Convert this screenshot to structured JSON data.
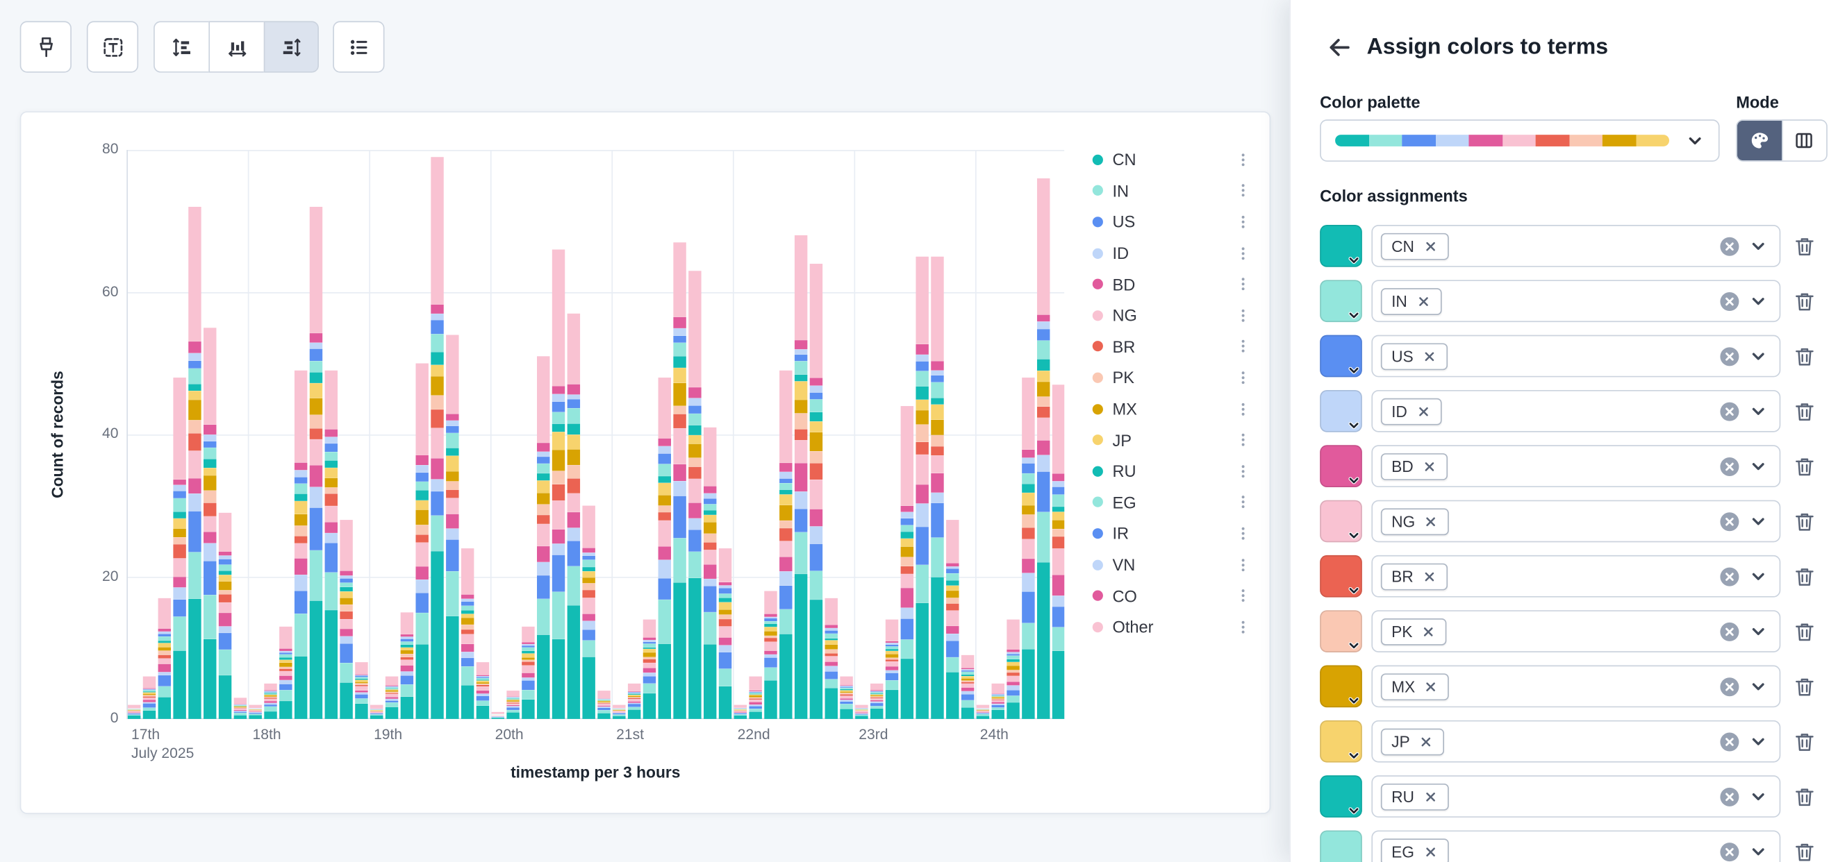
{
  "toolbar": {
    "buttons": [
      {
        "name": "brush",
        "pressed": false
      },
      {
        "name": "text-annotation",
        "pressed": false
      },
      {
        "name": "left-axis",
        "pressed": false
      },
      {
        "name": "bottom-axis",
        "pressed": false
      },
      {
        "name": "right-axis",
        "pressed": true
      },
      {
        "name": "legend-values",
        "pressed": false
      }
    ]
  },
  "icons": {
    "toolbar": [
      "brush-icon",
      "text-annotation-icon",
      "left-axis-icon",
      "bottom-axis-icon",
      "right-axis-icon",
      "legend-values-icon"
    ],
    "flyout": [
      "arrow-left-icon",
      "chevron-down-icon",
      "palette-icon",
      "columns-icon",
      "clear-circle-icon",
      "trash-icon",
      "cross-icon"
    ],
    "legend": [
      "vertical-dots-icon"
    ]
  },
  "chart_data": {
    "type": "bar",
    "stacked": true,
    "title": "",
    "xlabel": "timestamp per 3 hours",
    "ylabel": "Count of records",
    "ylim": [
      0,
      80
    ],
    "yticks": [
      0,
      20,
      40,
      60,
      80
    ],
    "x_days": [
      "17th",
      "18th",
      "19th",
      "20th",
      "21st",
      "22nd",
      "23rd",
      "24th"
    ],
    "x_first_tick_subline": "July 2025",
    "bucket_hours": 3,
    "legend_position": "right",
    "grid": true,
    "series": [
      {
        "name": "CN",
        "color": "#12BCB4",
        "share": 0.24
      },
      {
        "name": "IN",
        "color": "#93E6DC",
        "share": 0.09
      },
      {
        "name": "US",
        "color": "#5A8FF2",
        "share": 0.07
      },
      {
        "name": "ID",
        "color": "#BFD6F9",
        "share": 0.035
      },
      {
        "name": "BD",
        "color": "#E15A9C",
        "share": 0.045
      },
      {
        "name": "NG",
        "color": "#F9C2D2",
        "share": 0.06
      },
      {
        "name": "BR",
        "color": "#EB6352",
        "share": 0.03
      },
      {
        "name": "PK",
        "color": "#FAC8B3",
        "share": 0.025
      },
      {
        "name": "MX",
        "color": "#D8A302",
        "share": 0.035
      },
      {
        "name": "JP",
        "color": "#F7D36D",
        "share": 0.03
      },
      {
        "name": "RU",
        "color": "#12BCB4",
        "share": 0.02
      },
      {
        "name": "EG",
        "color": "#93E6DC",
        "share": 0.03
      },
      {
        "name": "IR",
        "color": "#5A8FF2",
        "share": 0.02
      },
      {
        "name": "VN",
        "color": "#BFD6F9",
        "share": 0.015
      },
      {
        "name": "CO",
        "color": "#E15A9C",
        "share": 0.02
      },
      {
        "name": "Other",
        "color": "#F9C2D2",
        "share": 0.235
      }
    ],
    "bucket_totals_by_day": [
      [
        2,
        6,
        17,
        48,
        72,
        55,
        29,
        3
      ],
      [
        2,
        5,
        13,
        49,
        72,
        49,
        28,
        8
      ],
      [
        2,
        6,
        15,
        50,
        79,
        54,
        24,
        8
      ],
      [
        1,
        4,
        13,
        51,
        66,
        57,
        30,
        4
      ],
      [
        2,
        5,
        14,
        48,
        67,
        63,
        41,
        24
      ],
      [
        2,
        6,
        18,
        49,
        68,
        64,
        17,
        6
      ],
      [
        2,
        5,
        14,
        44,
        65,
        65,
        28,
        9
      ],
      [
        2,
        5,
        14,
        48,
        76,
        47
      ]
    ]
  },
  "flyout": {
    "title": "Assign colors to terms",
    "sections": {
      "palette_label": "Color palette",
      "mode_label": "Mode",
      "assignments_label": "Color assignments"
    },
    "palette_preview": [
      "#12BCB4",
      "#93E6DC",
      "#5A8FF2",
      "#BFD6F9",
      "#E15A9C",
      "#F9C2D2",
      "#EB6352",
      "#FAC8B3",
      "#D8A302",
      "#F7D36D"
    ],
    "mode_options": [
      {
        "name": "palette",
        "selected": true
      },
      {
        "name": "custom",
        "selected": false
      }
    ],
    "assignments": [
      {
        "term": "CN",
        "color": "#12BCB4"
      },
      {
        "term": "IN",
        "color": "#93E6DC"
      },
      {
        "term": "US",
        "color": "#5A8FF2"
      },
      {
        "term": "ID",
        "color": "#BFD6F9"
      },
      {
        "term": "BD",
        "color": "#E15A9C"
      },
      {
        "term": "NG",
        "color": "#F9C2D2"
      },
      {
        "term": "BR",
        "color": "#EB6352"
      },
      {
        "term": "PK",
        "color": "#FAC8B3"
      },
      {
        "term": "MX",
        "color": "#D8A302"
      },
      {
        "term": "JP",
        "color": "#F7D36D"
      },
      {
        "term": "RU",
        "color": "#12BCB4"
      },
      {
        "term": "EG",
        "color": "#93E6DC"
      }
    ]
  }
}
